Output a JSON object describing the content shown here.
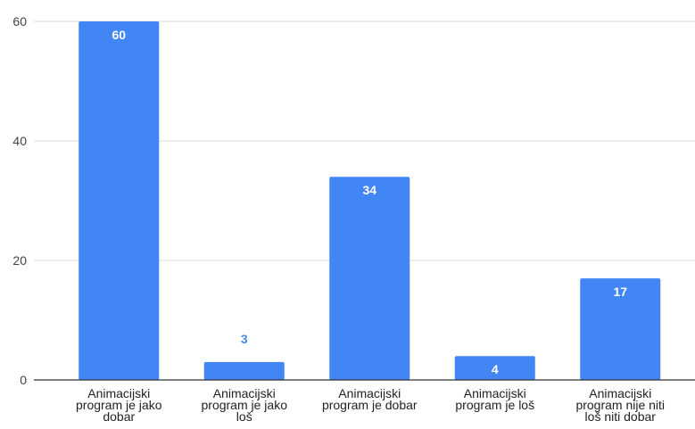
{
  "chart_data": {
    "type": "bar",
    "categories": [
      [
        "Animacijski",
        "program je jako",
        "dobar"
      ],
      [
        "Animacijski",
        "program je jako",
        "loš"
      ],
      [
        "Animacijski",
        "program je dobar"
      ],
      [
        "Animacijski",
        "program je loš"
      ],
      [
        "Animacijski",
        "program nije niti",
        "loš niti dobar"
      ]
    ],
    "values": [
      60,
      3,
      34,
      4,
      17
    ],
    "value_labels": [
      "60",
      "3",
      "34",
      "4",
      "17"
    ],
    "ylim": [
      0,
      60
    ],
    "yticks": [
      0,
      20,
      40,
      60
    ],
    "grid": true,
    "legend": "none",
    "bar_color": "#4285f4",
    "label_inside_color": "#ffffff",
    "label_outside_color": "#4285f4",
    "gridline_color": "#d9d9d9",
    "axis_color": "#333333"
  }
}
